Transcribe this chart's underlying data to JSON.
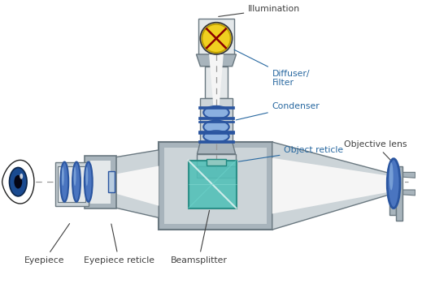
{
  "bg_color": "#ffffff",
  "gray_med": "#a8b4bc",
  "gray_dark": "#6a7880",
  "gray_light": "#ccd4d8",
  "gray_lightest": "#e4e8ea",
  "blue_lens": "#2a55a0",
  "blue_lens_mid": "#4a75c0",
  "blue_lens_light": "#8ab0e0",
  "teal_beam": "#50c0b8",
  "teal_beam_dark": "#208880",
  "yellow_bulb": "#f0d020",
  "yellow_dark": "#c0a000",
  "white_cone": "#f5f5f5",
  "dashed_color": "#aaaaaa",
  "label_dark": "#404040",
  "label_blue": "#2868a0",
  "labels": {
    "illumination": "Illumination",
    "diffuser": "Diffuser/\nFilter",
    "condenser": "Condenser",
    "object_reticle": "Object reticle",
    "objective_lens": "Objective lens",
    "eyepiece": "Eyepiece",
    "eyepiece_reticle": "Eyepiece reticle",
    "beamsplitter": "Beamsplitter"
  },
  "figsize": [
    5.19,
    3.55
  ],
  "dpi": 100
}
